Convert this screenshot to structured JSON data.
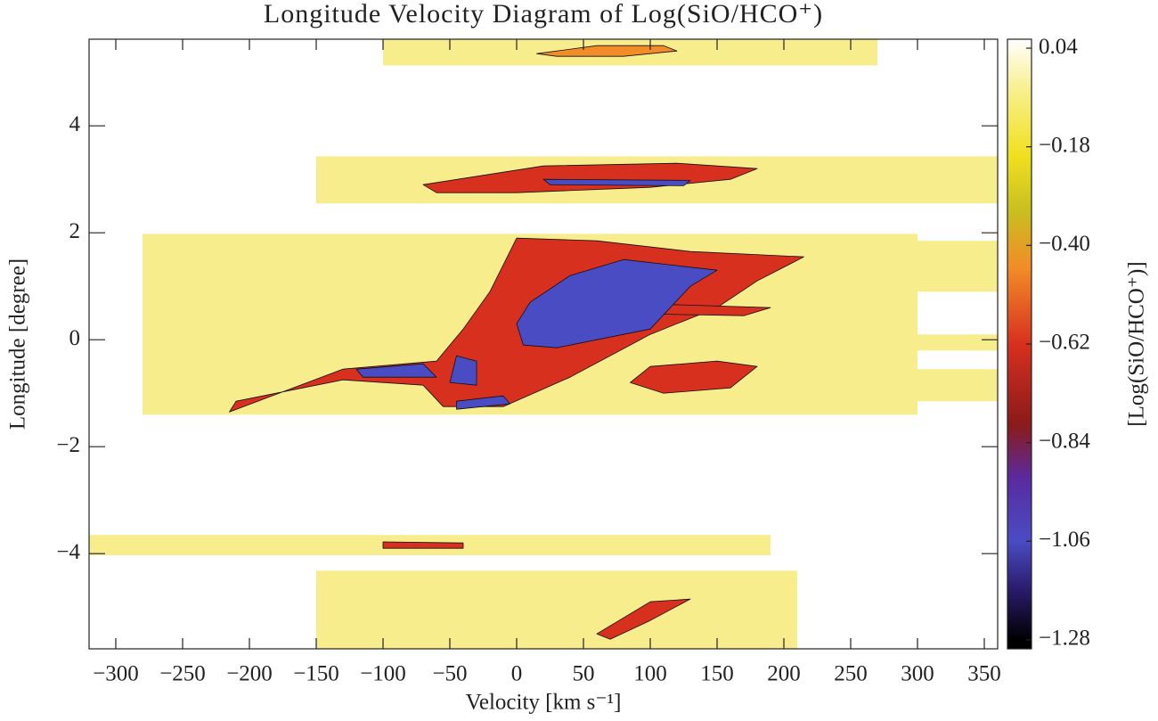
{
  "chart_data": {
    "type": "heatmap",
    "title": "Longitude Velocity Diagram of Log(SiO/HCO⁺)",
    "x_label": "Velocity [km s⁻¹]",
    "y_label": "Longitude [degree]",
    "colorbar_label": "[Log(SiO/HCO⁺)]",
    "xlim": [
      -320,
      360
    ],
    "ylim": [
      -5.78,
      5.62
    ],
    "xticks": [
      {
        "value": -300,
        "label": "−300"
      },
      {
        "value": -250,
        "label": "−250"
      },
      {
        "value": -200,
        "label": "−200"
      },
      {
        "value": -150,
        "label": "−150"
      },
      {
        "value": -100,
        "label": "−100"
      },
      {
        "value": -50,
        "label": "−50"
      },
      0,
      50,
      100,
      150,
      200,
      250,
      300,
      350
    ],
    "yticks": [
      {
        "value": -4,
        "label": "−4"
      },
      {
        "value": -2,
        "label": "−2"
      },
      0,
      2,
      4
    ],
    "clim": [
      -1.3,
      0.06
    ],
    "cticks": [
      0.04,
      {
        "value": -0.18,
        "label": "−0.18"
      },
      {
        "value": -0.4,
        "label": "−0.40"
      },
      {
        "value": -0.62,
        "label": "−0.62"
      },
      {
        "value": -0.84,
        "label": "−0.84"
      },
      {
        "value": -1.06,
        "label": "−1.06"
      },
      {
        "value": -1.28,
        "label": "−1.28"
      }
    ],
    "colormap": [
      {
        "value": -1.28,
        "color": "#000000"
      },
      {
        "value": -1.17,
        "color": "#2a1a6a"
      },
      {
        "value": -1.06,
        "color": "#4a4cc4"
      },
      {
        "value": -0.92,
        "color": "#5a2aa0"
      },
      {
        "value": -0.8,
        "color": "#8b1a1a"
      },
      {
        "value": -0.62,
        "color": "#d7301f"
      },
      {
        "value": -0.45,
        "color": "#f28c28"
      },
      {
        "value": -0.32,
        "color": "#c8c020"
      },
      {
        "value": -0.2,
        "color": "#f0e020"
      },
      {
        "value": -0.05,
        "color": "#f8f090"
      },
      {
        "value": 0.06,
        "color": "#ffffff"
      }
    ],
    "regions": [
      {
        "value": -0.2,
        "color": "#f8ed8c",
        "x": [
          -100,
          270,
          270,
          -100
        ],
        "y": [
          5.62,
          5.62,
          5.13,
          5.13
        ]
      },
      {
        "value": -0.2,
        "color": "#f8ed8c",
        "x": [
          -150,
          360,
          360,
          -150
        ],
        "y": [
          3.43,
          3.43,
          2.55,
          2.55
        ]
      },
      {
        "value": -0.2,
        "color": "#f8ed8c",
        "x": [
          -280,
          300,
          300,
          -280
        ],
        "y": [
          1.98,
          1.98,
          -1.4,
          -1.4
        ]
      },
      {
        "value": -0.2,
        "color": "#f8ed8c",
        "x": [
          300,
          360,
          360,
          300
        ],
        "y": [
          1.85,
          1.85,
          0.9,
          0.9
        ]
      },
      {
        "value": -0.2,
        "color": "#f8ed8c",
        "x": [
          300,
          360,
          360,
          300
        ],
        "y": [
          0.1,
          0.1,
          -0.2,
          -0.2
        ]
      },
      {
        "value": -0.2,
        "color": "#f8ed8c",
        "x": [
          300,
          360,
          360,
          300
        ],
        "y": [
          -0.55,
          -0.55,
          -1.15,
          -1.15
        ]
      },
      {
        "value": -0.2,
        "color": "#f8ed8c",
        "x": [
          -320,
          190,
          190,
          -320
        ],
        "y": [
          -3.65,
          -3.65,
          -4.03,
          -4.03
        ]
      },
      {
        "value": -0.2,
        "color": "#f8ed8c",
        "x": [
          -150,
          210,
          210,
          -150
        ],
        "y": [
          -4.32,
          -4.32,
          -5.78,
          -5.78
        ]
      },
      {
        "value": -0.45,
        "color": "#f28c28",
        "x": [
          15,
          60,
          110,
          120,
          80,
          30
        ],
        "y": [
          5.35,
          5.5,
          5.5,
          5.4,
          5.3,
          5.3
        ]
      },
      {
        "value": -0.62,
        "color": "#d7301f",
        "x": [
          -70,
          20,
          120,
          180,
          160,
          100,
          0,
          -60
        ],
        "y": [
          2.9,
          3.25,
          3.3,
          3.2,
          3.0,
          2.85,
          2.75,
          2.75
        ]
      },
      {
        "value": -1.0,
        "color": "#4a4cc4",
        "x": [
          20,
          130,
          125,
          25
        ],
        "y": [
          3.0,
          2.98,
          2.88,
          2.9
        ]
      },
      {
        "value": -0.62,
        "color": "#d7301f",
        "x": [
          -215,
          -130,
          -60,
          -40,
          -20,
          0,
          60,
          130,
          215,
          180,
          150,
          100,
          40,
          -10,
          -55,
          -70,
          -130,
          -210
        ],
        "y": [
          -1.35,
          -0.55,
          -0.4,
          0.2,
          0.9,
          1.9,
          1.85,
          1.65,
          1.55,
          1.1,
          0.6,
          0.1,
          -0.7,
          -1.25,
          -1.25,
          -0.85,
          -0.75,
          -1.15
        ]
      },
      {
        "value": -0.62,
        "color": "#d7301f",
        "x": [
          60,
          190,
          170,
          60
        ],
        "y": [
          0.7,
          0.6,
          0.45,
          0.5
        ]
      },
      {
        "value": -0.62,
        "color": "#d7301f",
        "x": [
          85,
          100,
          150,
          180,
          160,
          110
        ],
        "y": [
          -0.8,
          -0.5,
          -0.4,
          -0.5,
          -0.9,
          -1.0
        ]
      },
      {
        "value": -1.0,
        "color": "#4a4cc4",
        "x": [
          10,
          40,
          80,
          150,
          130,
          100,
          60,
          30,
          5,
          0
        ],
        "y": [
          0.7,
          1.2,
          1.5,
          1.3,
          1.0,
          0.2,
          0.0,
          -0.15,
          -0.1,
          0.3
        ]
      },
      {
        "value": -1.0,
        "color": "#4a4cc4",
        "x": [
          -120,
          -70,
          -60,
          -115
        ],
        "y": [
          -0.55,
          -0.45,
          -0.7,
          -0.7
        ]
      },
      {
        "value": -1.0,
        "color": "#4a4cc4",
        "x": [
          -45,
          -30,
          -30,
          -50
        ],
        "y": [
          -0.3,
          -0.4,
          -0.85,
          -0.8
        ]
      },
      {
        "value": -1.0,
        "color": "#4a4cc4",
        "x": [
          -45,
          -10,
          -5,
          -45
        ],
        "y": [
          -1.15,
          -1.05,
          -1.2,
          -1.3
        ]
      },
      {
        "value": -0.62,
        "color": "#d7301f",
        "x": [
          -100,
          -40,
          -40,
          -100
        ],
        "y": [
          -3.78,
          -3.8,
          -3.9,
          -3.9
        ]
      },
      {
        "value": -0.62,
        "color": "#d7301f",
        "x": [
          60,
          100,
          130,
          100,
          70
        ],
        "y": [
          -5.5,
          -4.9,
          -4.85,
          -5.25,
          -5.6
        ]
      }
    ]
  }
}
